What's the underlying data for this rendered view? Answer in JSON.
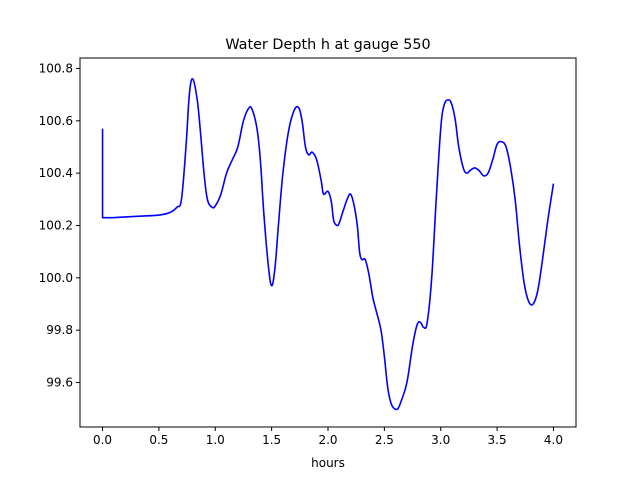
{
  "chart_data": {
    "type": "line",
    "title": "Water Depth h at gauge 550",
    "xlabel": "hours",
    "ylabel": "",
    "xlim": [
      -0.2,
      4.2
    ],
    "ylim": [
      99.43,
      100.84
    ],
    "xticks": [
      0.0,
      0.5,
      1.0,
      1.5,
      2.0,
      2.5,
      3.0,
      3.5,
      4.0
    ],
    "xtick_labels": [
      "0.0",
      "0.5",
      "1.0",
      "1.5",
      "2.0",
      "2.5",
      "3.0",
      "3.5",
      "4.0"
    ],
    "yticks": [
      99.6,
      99.8,
      100.0,
      100.2,
      100.4,
      100.6,
      100.8
    ],
    "ytick_labels": [
      "99.6",
      "99.8",
      "100.0",
      "100.2",
      "100.4",
      "100.6",
      "100.8"
    ],
    "grid": false,
    "series": [
      {
        "color": "#0000ff",
        "x": [
          0.0,
          0.0,
          0.0,
          0.1,
          0.3,
          0.5,
          0.6,
          0.66,
          0.7,
          0.74,
          0.77,
          0.8,
          0.84,
          0.87,
          0.9,
          0.93,
          0.97,
          1.0,
          1.05,
          1.1,
          1.15,
          1.2,
          1.25,
          1.3,
          1.33,
          1.37,
          1.4,
          1.43,
          1.47,
          1.5,
          1.53,
          1.56,
          1.6,
          1.65,
          1.7,
          1.74,
          1.77,
          1.8,
          1.83,
          1.86,
          1.9,
          1.94,
          1.96,
          2.0,
          2.03,
          2.05,
          2.08,
          2.1,
          2.13,
          2.17,
          2.2,
          2.23,
          2.26,
          2.28,
          2.3,
          2.33,
          2.36,
          2.38,
          2.4,
          2.43,
          2.47,
          2.5,
          2.53,
          2.56,
          2.59,
          2.62,
          2.65,
          2.7,
          2.75,
          2.79,
          2.82,
          2.85,
          2.88,
          2.92,
          2.96,
          3.0,
          3.03,
          3.07,
          3.1,
          3.13,
          3.16,
          3.2,
          3.23,
          3.26,
          3.3,
          3.34,
          3.38,
          3.42,
          3.46,
          3.5,
          3.54,
          3.58,
          3.62,
          3.66,
          3.7,
          3.74,
          3.78,
          3.82,
          3.86,
          3.9,
          3.95,
          4.0
        ],
        "y": [
          100.57,
          100.23,
          100.23,
          100.23,
          100.235,
          100.24,
          100.25,
          100.27,
          100.3,
          100.5,
          100.7,
          100.76,
          100.68,
          100.55,
          100.4,
          100.3,
          100.27,
          100.275,
          100.32,
          100.4,
          100.45,
          100.5,
          100.6,
          100.65,
          100.64,
          100.57,
          100.45,
          100.25,
          100.05,
          99.97,
          100.04,
          100.2,
          100.4,
          100.56,
          100.64,
          100.65,
          100.6,
          100.5,
          100.47,
          100.48,
          100.45,
          100.37,
          100.32,
          100.33,
          100.29,
          100.22,
          100.2,
          100.21,
          100.25,
          100.3,
          100.32,
          100.28,
          100.2,
          100.1,
          100.07,
          100.07,
          100.02,
          99.97,
          99.92,
          99.87,
          99.8,
          99.7,
          99.58,
          99.52,
          99.5,
          99.5,
          99.53,
          99.6,
          99.74,
          99.82,
          99.83,
          99.81,
          99.83,
          100.0,
          100.3,
          100.57,
          100.66,
          100.68,
          100.66,
          100.6,
          100.5,
          100.42,
          100.4,
          100.41,
          100.42,
          100.41,
          100.39,
          100.4,
          100.45,
          100.51,
          100.52,
          100.5,
          100.42,
          100.3,
          100.12,
          99.98,
          99.91,
          99.9,
          99.95,
          100.06,
          100.22,
          100.36
        ]
      }
    ]
  }
}
